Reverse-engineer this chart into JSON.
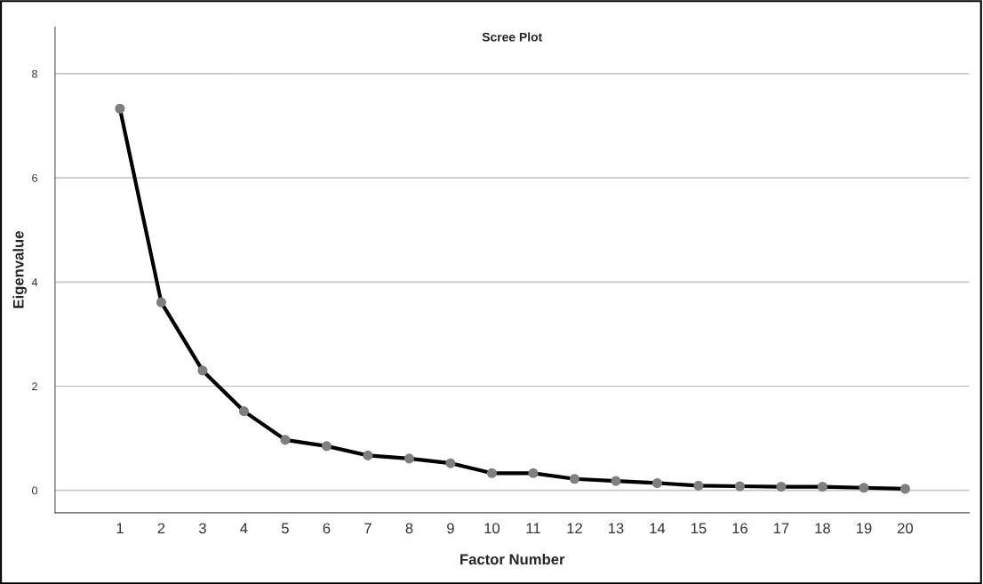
{
  "chart_data": {
    "type": "line",
    "title": "Scree Plot",
    "xlabel": "Factor Number",
    "ylabel": "Eigenvalue",
    "categories": [
      "1",
      "2",
      "3",
      "4",
      "5",
      "6",
      "7",
      "8",
      "9",
      "10",
      "11",
      "12",
      "13",
      "14",
      "15",
      "16",
      "17",
      "18",
      "19",
      "20"
    ],
    "series": [
      {
        "color": "#000000",
        "values": [
          7.33,
          3.61,
          2.3,
          1.52,
          0.97,
          0.85,
          0.67,
          0.61,
          0.52,
          0.33,
          0.33,
          0.22,
          0.18,
          0.14,
          0.09,
          0.08,
          0.07,
          0.07,
          0.05,
          0.03
        ]
      }
    ],
    "ylim": [
      -0.43,
      8.9
    ],
    "yticks": [
      0,
      2,
      4,
      6,
      8
    ],
    "grid": "y",
    "marker": "circle",
    "line_style": "solid"
  }
}
